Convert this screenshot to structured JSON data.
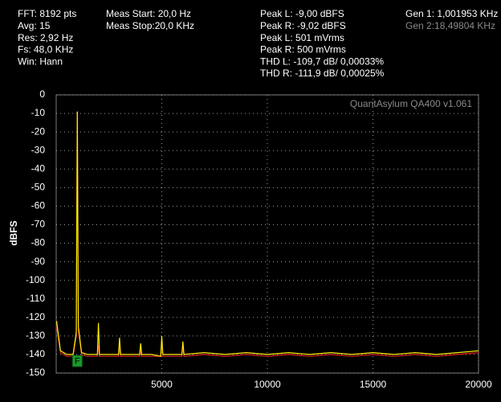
{
  "chart_data": {
    "type": "line",
    "header": [
      [
        "FFT: 8192 pts",
        "Avg: 15",
        "Res: 2,92 Hz",
        "Fs: 48,0 KHz",
        "Win: Hann"
      ],
      [
        "Meas Start: 20,0 Hz",
        "Meas Stop:20,0 KHz"
      ],
      [
        "Peak L: -9,00 dBFS",
        "Peak R: -9,02 dBFS",
        "Peak L: 501 mVrms",
        "Peak R: 500 mVrms",
        "THD L: -109,7 dB/ 0,00033%",
        "THD R: -111,9 dB/ 0,00025%"
      ],
      [
        "Gen 1: 1,001953 KHz",
        "Gen 2:18,49804 KHz"
      ]
    ],
    "watermark": "QuantAsylum QA400 v1.061",
    "ylabel": "dBFS",
    "marker_label": "F",
    "marker_x": 1000,
    "x": [
      20,
      200,
      500,
      800,
      950,
      1000,
      1050,
      1200,
      1500,
      1950,
      2000,
      2050,
      2500,
      2950,
      3000,
      3050,
      3500,
      3950,
      4000,
      4050,
      4500,
      4950,
      5000,
      5050,
      5500,
      5950,
      6000,
      6050,
      7000,
      8000,
      9000,
      10000,
      11000,
      12000,
      13000,
      14000,
      15000,
      16000,
      17000,
      18000,
      19000,
      20000
    ],
    "series": [
      {
        "name": "R",
        "color": "#e02020",
        "values": [
          -125,
          -139,
          -141,
          -141,
          -130,
          -9,
          -127,
          -140,
          -141,
          -141,
          -135,
          -141,
          -141,
          -141,
          -136,
          -141,
          -141,
          -141,
          -137,
          -141,
          -141,
          -141,
          -134,
          -141,
          -141,
          -141,
          -136,
          -141,
          -140,
          -141,
          -140,
          -141,
          -140,
          -141,
          -140,
          -141,
          -140,
          -141,
          -140,
          -141,
          -140,
          -139
        ]
      },
      {
        "name": "L",
        "color": "#ffee00",
        "values": [
          -122,
          -138,
          -140,
          -140,
          -128,
          -9,
          -125,
          -139,
          -140,
          -140,
          -123,
          -140,
          -140,
          -140,
          -131,
          -140,
          -140,
          -140,
          -134,
          -140,
          -140,
          -141,
          -130,
          -140,
          -140,
          -140,
          -133,
          -140,
          -139,
          -140,
          -139,
          -140,
          -139,
          -140,
          -139,
          -140,
          -139,
          -140,
          -139,
          -140,
          -139,
          -138
        ]
      }
    ],
    "xlim": [
      0,
      20000
    ],
    "xticks": [
      5000,
      10000,
      15000,
      20000
    ],
    "ylim": [
      -150,
      0
    ],
    "yticks": [
      0,
      -10,
      -20,
      -30,
      -40,
      -50,
      -60,
      -70,
      -80,
      -90,
      -100,
      -110,
      -120,
      -130,
      -140,
      -150
    ],
    "grid": true
  }
}
